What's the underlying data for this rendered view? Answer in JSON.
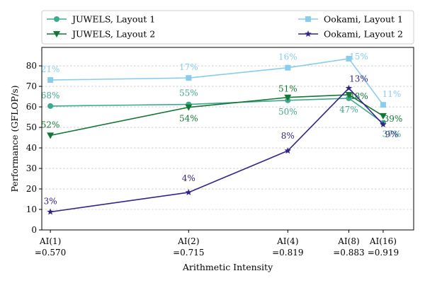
{
  "chart_data": {
    "type": "line",
    "xlabel": "Arithmetic Intensity",
    "ylabel": "Performance (GFLOP/s)",
    "ylim": [
      0,
      89
    ],
    "yticks": [
      0,
      10,
      20,
      30,
      40,
      50,
      60,
      70,
      80
    ],
    "x": [
      0.57,
      0.715,
      0.819,
      0.883,
      0.919
    ],
    "xlim": [
      0.561,
      0.951
    ],
    "xtick_labels": [
      {
        "top": "AI(1)",
        "bottom": "=0.570"
      },
      {
        "top": "AI(2)",
        "bottom": "=0.715"
      },
      {
        "top": "AI(4)",
        "bottom": "=0.819"
      },
      {
        "top": "AI(8)",
        "bottom": "=0.883"
      },
      {
        "top": "AI(16)",
        "bottom": "=0.919"
      }
    ],
    "grid": "y-dashed",
    "legend_placement": "top, above plot, two columns",
    "series": [
      {
        "name": "JUWELS, Layout 1",
        "color": "#3fa98f",
        "marker": "circle",
        "values": [
          60.4,
          61.2,
          63.2,
          64.2,
          52.2
        ],
        "labels": [
          "68%",
          "55%",
          "50%",
          "47%",
          "37%"
        ]
      },
      {
        "name": "JUWELS, Layout 2",
        "color": "#117733",
        "marker": "triangle-down",
        "values": [
          46.1,
          59.8,
          64.6,
          65.9,
          55.6
        ],
        "labels": [
          "52%",
          "54%",
          "51%",
          "48%",
          "39%"
        ]
      },
      {
        "name": "Ookami, Layout 1",
        "color": "#88ccee",
        "marker": "square",
        "values": [
          73.1,
          74.1,
          79.1,
          83.5,
          61.0
        ],
        "labels": [
          "21%",
          "17%",
          "16%",
          "15%",
          "11%"
        ]
      },
      {
        "name": "Ookami, Layout 2",
        "color": "#332288",
        "marker": "star",
        "values": [
          8.8,
          18.3,
          38.6,
          69.1,
          51.4
        ],
        "labels": [
          "3%",
          "4%",
          "8%",
          "13%",
          "9%"
        ]
      }
    ]
  }
}
